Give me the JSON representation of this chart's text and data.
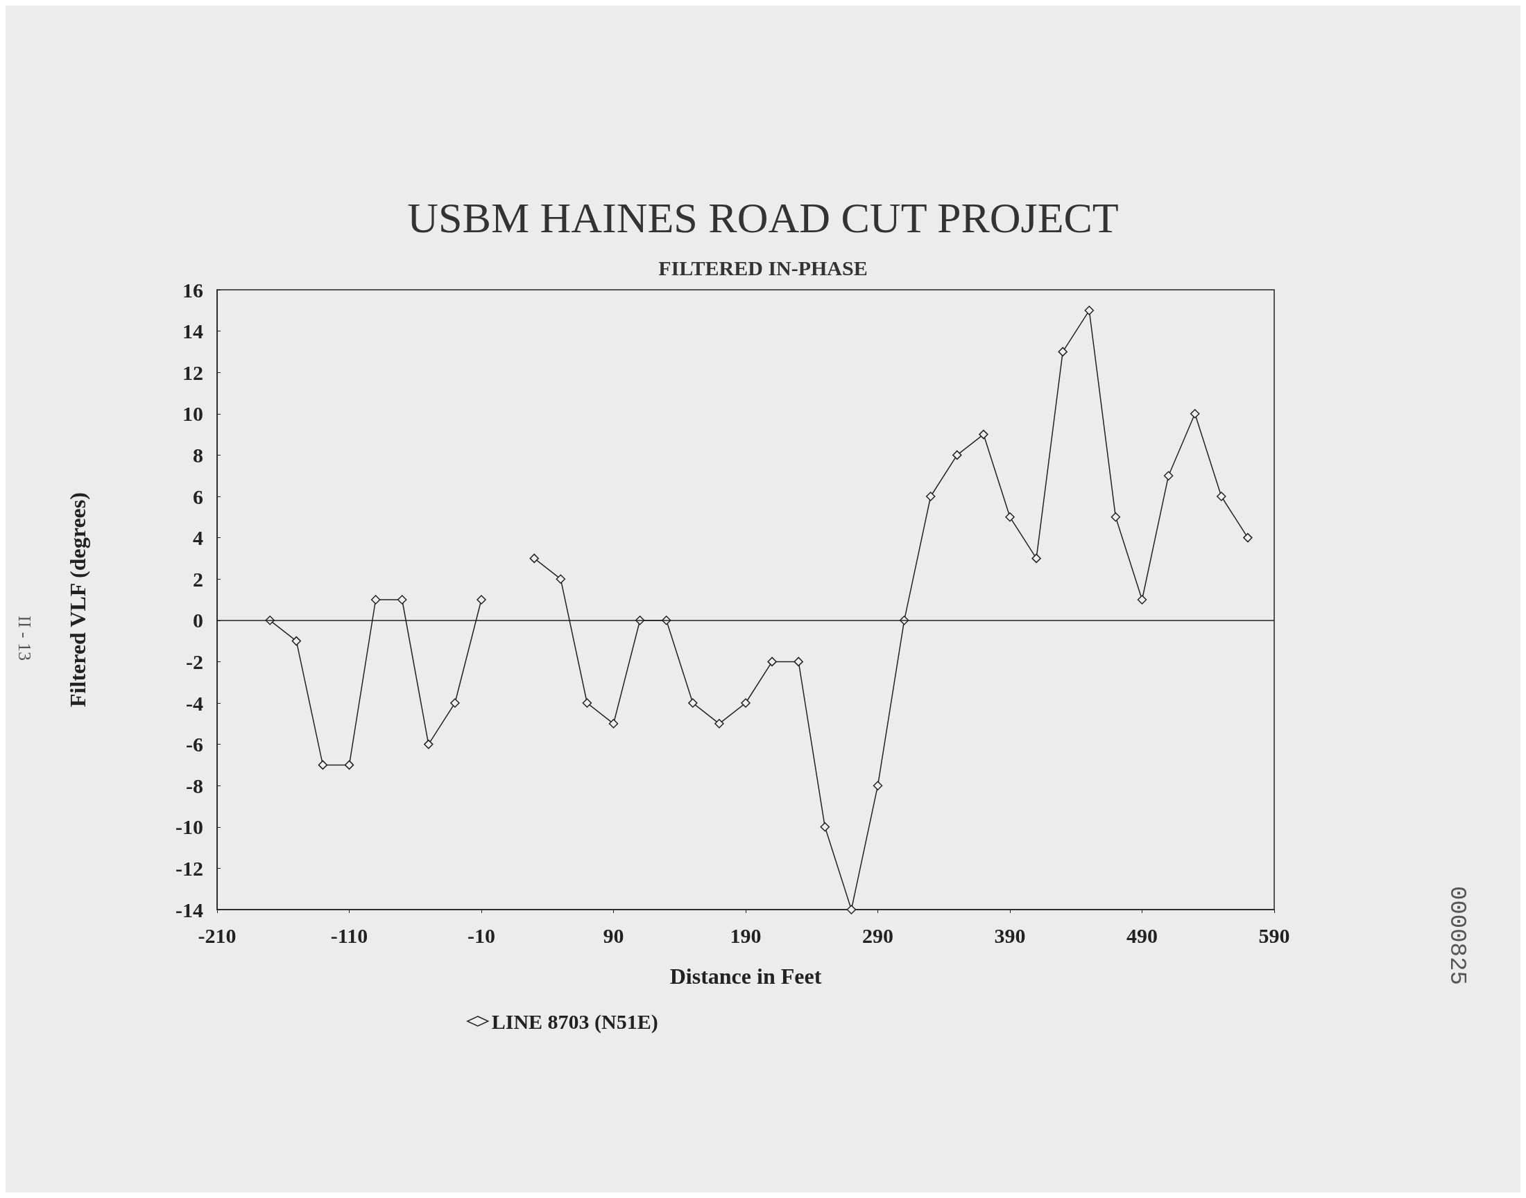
{
  "chart_data": {
    "type": "line",
    "title": "USBM HAINES ROAD CUT PROJECT",
    "subtitle": "FILTERED IN-PHASE",
    "xlabel": "Distance in Feet",
    "ylabel": "Filtered VLF (degrees)",
    "x": [
      -170,
      -150,
      -130,
      -110,
      -90,
      -70,
      -50,
      -30,
      -10,
      10,
      30,
      50,
      70,
      90,
      110,
      130,
      150,
      170,
      190,
      210,
      230,
      250,
      270,
      290,
      310,
      330,
      350,
      370,
      390,
      410,
      430,
      450,
      470,
      490,
      510,
      530,
      550,
      570
    ],
    "series": [
      {
        "name": "LINE 8703 (N51E)",
        "color": "#222222",
        "values": [
          0,
          -1,
          -7,
          -7,
          1,
          1,
          -6,
          -4,
          1,
          null,
          3,
          2,
          -4,
          -5,
          0,
          0,
          -4,
          -5,
          -4,
          -2,
          -2,
          -10,
          -14,
          -8,
          0,
          6,
          8,
          9,
          5,
          3,
          13,
          15,
          5,
          1,
          7,
          10,
          6,
          4
        ]
      }
    ],
    "xlim": [
      -210,
      590
    ],
    "xticks": [
      -210,
      -110,
      -10,
      90,
      190,
      290,
      390,
      490,
      590
    ],
    "ylim": [
      -14,
      16
    ],
    "yticks": [
      -14,
      -12,
      -10,
      -8,
      -6,
      -4,
      -2,
      0,
      2,
      4,
      6,
      8,
      10,
      12,
      14,
      16
    ],
    "ref_lines": [
      {
        "axis": "y",
        "value": 0,
        "color": "#222222"
      }
    ],
    "annotations": [
      "II - 13",
      "0000825"
    ],
    "marker": "diamond",
    "line_style": "solid",
    "grid": false,
    "legend": "bottom"
  }
}
